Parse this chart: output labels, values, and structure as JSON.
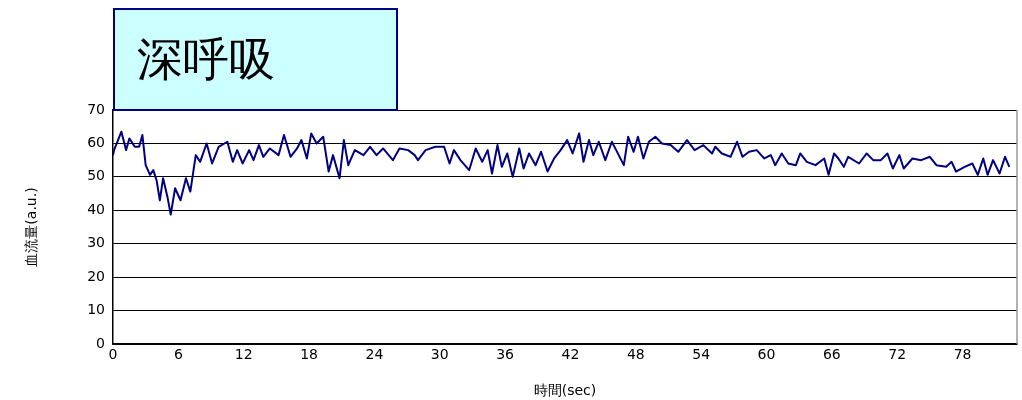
{
  "chart_data": {
    "type": "line",
    "title": "深呼吸",
    "xlabel": "時間(sec)",
    "ylabel": "血流量(a.u.)",
    "x": [
      0,
      0.1,
      0.77,
      1.2,
      1.5,
      2.0,
      2.4,
      2.7,
      3.0,
      3.4,
      3.7,
      4.0,
      4.3,
      4.6,
      5.0,
      5.3,
      5.7,
      6.2,
      6.7,
      7.1,
      7.6,
      8.0,
      8.6,
      9.1,
      9.7,
      10.5,
      11.0,
      11.4,
      11.9,
      12.5,
      12.9,
      13.4,
      13.8,
      14.4,
      15.2,
      15.7,
      16.3,
      16.9,
      17.3,
      17.8,
      18.2,
      18.7,
      19.3,
      19.8,
      20.2,
      20.8,
      21.2,
      21.6,
      22.2,
      23.0,
      23.6,
      24.2,
      24.8,
      25.7,
      26.3,
      27.1,
      27.7,
      28.0,
      28.7,
      29.6,
      30.4,
      30.9,
      31.3,
      31.9,
      32.7,
      33.3,
      33.9,
      34.4,
      34.8,
      35.3,
      35.7,
      36.2,
      36.7,
      37.3,
      37.7,
      38.2,
      38.8,
      39.3,
      39.9,
      40.5,
      41.1,
      41.7,
      42.2,
      42.8,
      43.2,
      43.7,
      44.1,
      44.6,
      45.2,
      45.8,
      46.2,
      46.9,
      47.3,
      47.8,
      48.2,
      48.7,
      49.2,
      49.8,
      50.4,
      51.2,
      51.9,
      52.7,
      53.4,
      54.2,
      55.0,
      55.3,
      55.9,
      56.7,
      57.3,
      57.8,
      58.4,
      59.1,
      59.8,
      60.4,
      60.8,
      61.4,
      62.0,
      62.7,
      63.1,
      63.7,
      64.5,
      65.3,
      65.7,
      66.2,
      66.6,
      67.1,
      67.5,
      68.5,
      69.2,
      69.8,
      70.5,
      71.1,
      71.6,
      72.2,
      72.6,
      73.4,
      74.2,
      75.0,
      75.6,
      76.5,
      77.0,
      77.4,
      78.2,
      78.9,
      79.4,
      79.9,
      80.3,
      80.8,
      81.4,
      81.9,
      82.3
    ],
    "series": [
      {
        "color": "#000080",
        "values": [
          56.5,
          58,
          63.5,
          58,
          61.5,
          59,
          59,
          62.5,
          53.5,
          50.6,
          52,
          49,
          43,
          49.6,
          44,
          38.7,
          46.6,
          43,
          49.6,
          45.6,
          56.5,
          54.5,
          60,
          54,
          59,
          60.5,
          54.5,
          58,
          54,
          58,
          55,
          59.5,
          56,
          58.5,
          56.5,
          62.5,
          56,
          58.5,
          61,
          55.5,
          63,
          60,
          62,
          51.6,
          56.5,
          49.6,
          61,
          53.5,
          58,
          56.5,
          59,
          56.5,
          58.5,
          55,
          58.5,
          58,
          56.5,
          55,
          58,
          59,
          59,
          54,
          58,
          55,
          52,
          58.5,
          54.5,
          58,
          51,
          59.5,
          53,
          57,
          50,
          58.5,
          52.5,
          57,
          53.5,
          57.5,
          51.6,
          55.5,
          58,
          61,
          57,
          63,
          54.5,
          61,
          56.5,
          60.5,
          55,
          60.5,
          58,
          53.5,
          62,
          57.5,
          62,
          55.5,
          60.5,
          62,
          60,
          59.5,
          57.5,
          61,
          58,
          59.5,
          57,
          59,
          57,
          56,
          60.5,
          56,
          57.5,
          58,
          55.5,
          56.5,
          53.5,
          57,
          54,
          53.5,
          57,
          54.5,
          53.5,
          55.5,
          50.6,
          57,
          55.5,
          53,
          56,
          54,
          57,
          55,
          55,
          57,
          52.5,
          56.5,
          52.5,
          55.5,
          55,
          56,
          53.5,
          53,
          54.5,
          51.6,
          53,
          54,
          50.6,
          55.5,
          50.6,
          55,
          51,
          56,
          53
        ]
      }
    ],
    "xlim": [
      0,
      83
    ],
    "xticks": [
      0,
      6,
      12,
      18,
      24,
      30,
      36,
      42,
      48,
      54,
      60,
      66,
      72,
      78
    ],
    "ylim": [
      0,
      70
    ],
    "yticks": [
      0,
      10,
      20,
      30,
      40,
      50,
      60,
      70
    ],
    "grid": "y",
    "legend": false,
    "marker": "none",
    "line_style": "solid"
  }
}
